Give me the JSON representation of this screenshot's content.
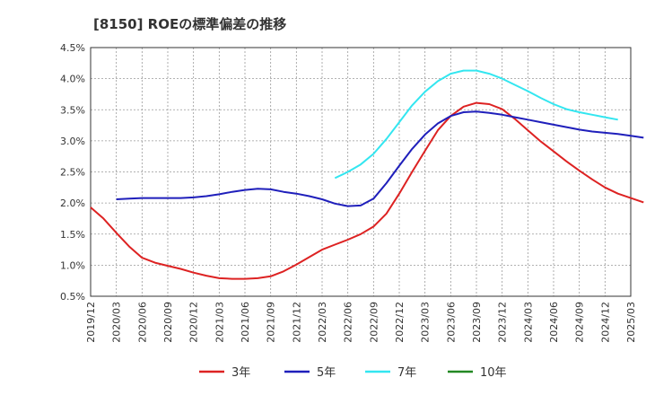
{
  "chart_data": {
    "type": "line",
    "title": "[8150]  ROEの標準偏差の推移",
    "xlabel": "",
    "ylabel": "",
    "ylim": [
      0.5,
      4.5
    ],
    "yticks": [
      0.5,
      1.0,
      1.5,
      2.0,
      2.5,
      3.0,
      3.5,
      4.0,
      4.5
    ],
    "ytick_labels": [
      "0.5%",
      "1.0%",
      "1.5%",
      "2.0%",
      "2.5%",
      "3.0%",
      "3.5%",
      "4.0%",
      "4.5%"
    ],
    "xtick_labels": [
      "2019/12",
      "2020/03",
      "2020/06",
      "2020/09",
      "2020/12",
      "2021/03",
      "2021/06",
      "2021/09",
      "2021/12",
      "2022/03",
      "2022/06",
      "2022/09",
      "2022/12",
      "2023/03",
      "2023/06",
      "2023/09",
      "2023/12",
      "2024/03",
      "2024/06",
      "2024/09",
      "2024/12",
      "2025/03"
    ],
    "grid": true,
    "legend_position": "bottom",
    "series": [
      {
        "name": "3年",
        "color": "#dd2222",
        "values": [
          1.93,
          1.75,
          1.52,
          1.3,
          1.12,
          1.04,
          0.99,
          0.94,
          0.88,
          0.83,
          0.79,
          0.78,
          0.78,
          0.79,
          0.82,
          0.9,
          1.01,
          1.13,
          1.25,
          1.33,
          1.41,
          1.5,
          1.62,
          1.83,
          2.15,
          2.5,
          2.84,
          3.17,
          3.4,
          3.55,
          3.61,
          3.59,
          3.51,
          3.35,
          3.17,
          2.99,
          2.83,
          2.67,
          2.52,
          2.38,
          2.25,
          2.15,
          2.08,
          2.01
        ]
      },
      {
        "name": "5年",
        "color": "#1f1fbb",
        "values": [
          null,
          null,
          2.06,
          2.07,
          2.08,
          2.08,
          2.08,
          2.08,
          2.09,
          2.11,
          2.14,
          2.18,
          2.21,
          2.23,
          2.22,
          2.18,
          2.15,
          2.11,
          2.06,
          1.99,
          1.95,
          1.96,
          2.07,
          2.32,
          2.6,
          2.87,
          3.1,
          3.28,
          3.4,
          3.46,
          3.47,
          3.45,
          3.42,
          3.38,
          3.34,
          3.3,
          3.26,
          3.22,
          3.18,
          3.15,
          3.13,
          3.11,
          3.08,
          3.05
        ]
      },
      {
        "name": "7年",
        "color": "#33e6f0",
        "values": [
          null,
          null,
          null,
          null,
          null,
          null,
          null,
          null,
          null,
          null,
          null,
          null,
          null,
          null,
          null,
          null,
          null,
          null,
          null,
          2.4,
          2.5,
          2.62,
          2.79,
          3.03,
          3.3,
          3.57,
          3.79,
          3.96,
          4.08,
          4.13,
          4.13,
          4.08,
          4.0,
          3.9,
          3.8,
          3.69,
          3.59,
          3.51,
          3.46,
          3.42,
          3.38,
          3.34
        ]
      },
      {
        "name": "10年",
        "color": "#228822",
        "values": []
      }
    ]
  }
}
